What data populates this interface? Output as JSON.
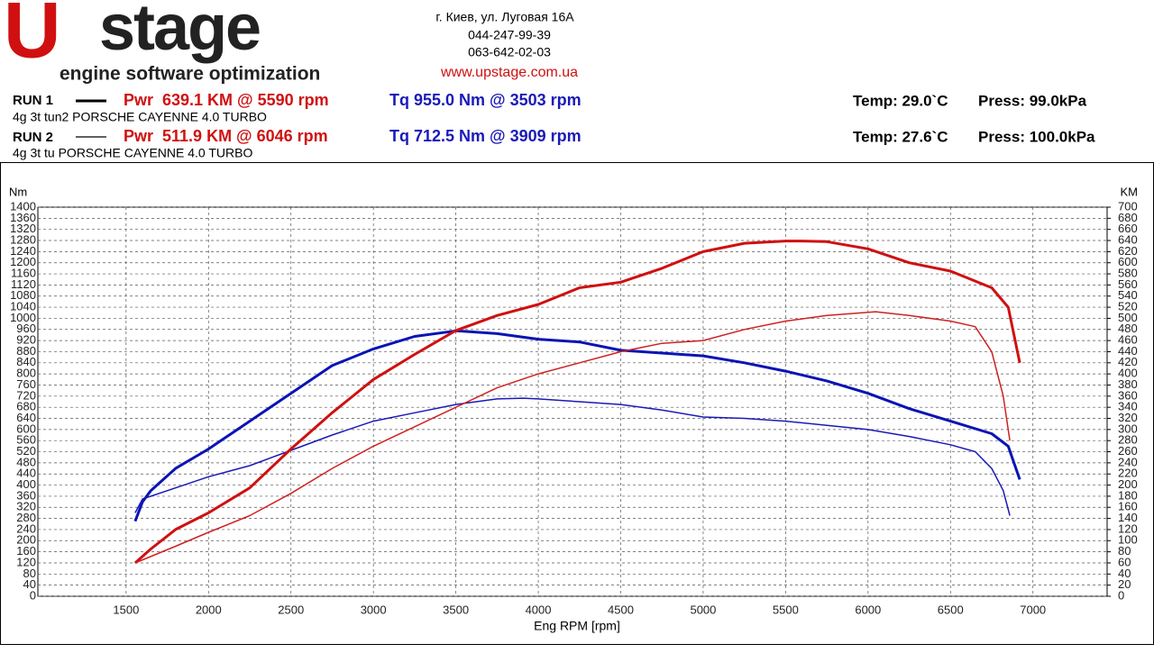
{
  "header": {
    "logo_mark": "U",
    "logo_word": "stage",
    "tagline": "engine software optimization",
    "address": "г. Киев, ул. Луговая 16А",
    "phone1": "044-247-99-39",
    "phone2": "063-642-02-03",
    "website": "www.upstage.com.ua",
    "runs": [
      {
        "label": "RUN 1",
        "power": "Pwr  639.1 KM @ 5590 rpm",
        "torque": "Tq 955.0 Nm @ 3503 rpm",
        "description": "4g 3t tun2 PORSCHE CAYENNE 4.0 TURBO",
        "temp": "Temp: 29.0`C",
        "press": "Press: 99.0kPa"
      },
      {
        "label": "RUN 2",
        "power": "Pwr  511.9 KM @ 6046 rpm",
        "torque": "Tq 712.5 Nm @ 3909 rpm",
        "description": "4g 3t tu PORSCHE CAYENNE 4.0 TURBO",
        "temp": "Temp: 27.6`C",
        "press": "Press: 100.0kPa"
      }
    ]
  },
  "chart_data": {
    "type": "line",
    "xlabel": "Eng RPM [rpm]",
    "ylabel": "Nm",
    "y2label": "KM",
    "grid": true,
    "xlim": [
      965,
      7450
    ],
    "xticks": [
      1500,
      2000,
      2500,
      3000,
      3500,
      4000,
      4500,
      5000,
      5500,
      6000,
      6500,
      7000
    ],
    "ylim": [
      0,
      1400
    ],
    "yticks": [
      0,
      40,
      80,
      120,
      160,
      200,
      240,
      280,
      320,
      360,
      400,
      440,
      480,
      520,
      560,
      600,
      640,
      680,
      720,
      760,
      800,
      840,
      880,
      920,
      960,
      1000,
      1040,
      1080,
      1120,
      1160,
      1200,
      1240,
      1280,
      1320,
      1360,
      1400
    ],
    "y2lim": [
      0,
      700
    ],
    "y2ticks": [
      0,
      20,
      40,
      60,
      80,
      100,
      120,
      140,
      160,
      180,
      200,
      220,
      240,
      260,
      280,
      300,
      320,
      340,
      360,
      380,
      400,
      420,
      440,
      460,
      480,
      500,
      520,
      540,
      560,
      580,
      600,
      620,
      640,
      660,
      680,
      700
    ],
    "series": [
      {
        "color": "#0a14b4",
        "width": 3,
        "axis": "y",
        "x": [
          1555,
          1600,
          1650,
          1800,
          2000,
          2250,
          2500,
          2750,
          3000,
          3250,
          3503,
          3750,
          4000,
          4250,
          4500,
          4750,
          5000,
          5250,
          5500,
          5750,
          6000,
          6250,
          6500,
          6750,
          6850,
          6920
        ],
        "values": [
          270,
          340,
          380,
          460,
          530,
          630,
          730,
          830,
          890,
          935,
          955,
          945,
          925,
          915,
          885,
          875,
          865,
          840,
          810,
          775,
          730,
          675,
          630,
          585,
          540,
          420
        ]
      },
      {
        "color": "#1a1ab8",
        "width": 1.5,
        "axis": "y",
        "x": [
          1555,
          1600,
          1800,
          2000,
          2250,
          2500,
          2750,
          3000,
          3250,
          3500,
          3750,
          3909,
          4000,
          4250,
          4500,
          4750,
          5000,
          5250,
          5500,
          5750,
          6000,
          6250,
          6500,
          6650,
          6750,
          6820,
          6860
        ],
        "values": [
          300,
          350,
          390,
          430,
          470,
          525,
          580,
          630,
          660,
          690,
          710,
          712.5,
          710,
          700,
          690,
          670,
          645,
          640,
          630,
          615,
          600,
          575,
          545,
          520,
          460,
          380,
          290
        ]
      },
      {
        "color": "#d01010",
        "width": 3,
        "axis": "y2",
        "x": [
          1555,
          1650,
          1800,
          2000,
          2250,
          2500,
          2750,
          3000,
          3250,
          3500,
          3750,
          4000,
          4250,
          4500,
          4750,
          5000,
          5250,
          5500,
          5590,
          5750,
          6000,
          6250,
          6500,
          6750,
          6850,
          6920
        ],
        "values": [
          60,
          85,
          120,
          150,
          195,
          265,
          330,
          390,
          435,
          478,
          505,
          525,
          555,
          565,
          590,
          620,
          635,
          639,
          639.1,
          638,
          625,
          600,
          585,
          555,
          520,
          420
        ]
      },
      {
        "color": "#d02020",
        "width": 1.5,
        "axis": "y2",
        "x": [
          1555,
          1800,
          2000,
          2250,
          2500,
          2750,
          3000,
          3250,
          3500,
          3750,
          4000,
          4250,
          4500,
          4750,
          5000,
          5250,
          5500,
          5750,
          6046,
          6250,
          6500,
          6650,
          6750,
          6820,
          6860
        ],
        "values": [
          60,
          90,
          115,
          145,
          185,
          230,
          270,
          305,
          340,
          375,
          400,
          420,
          440,
          455,
          460,
          480,
          495,
          505,
          511.9,
          505,
          495,
          485,
          440,
          360,
          280
        ]
      }
    ]
  }
}
